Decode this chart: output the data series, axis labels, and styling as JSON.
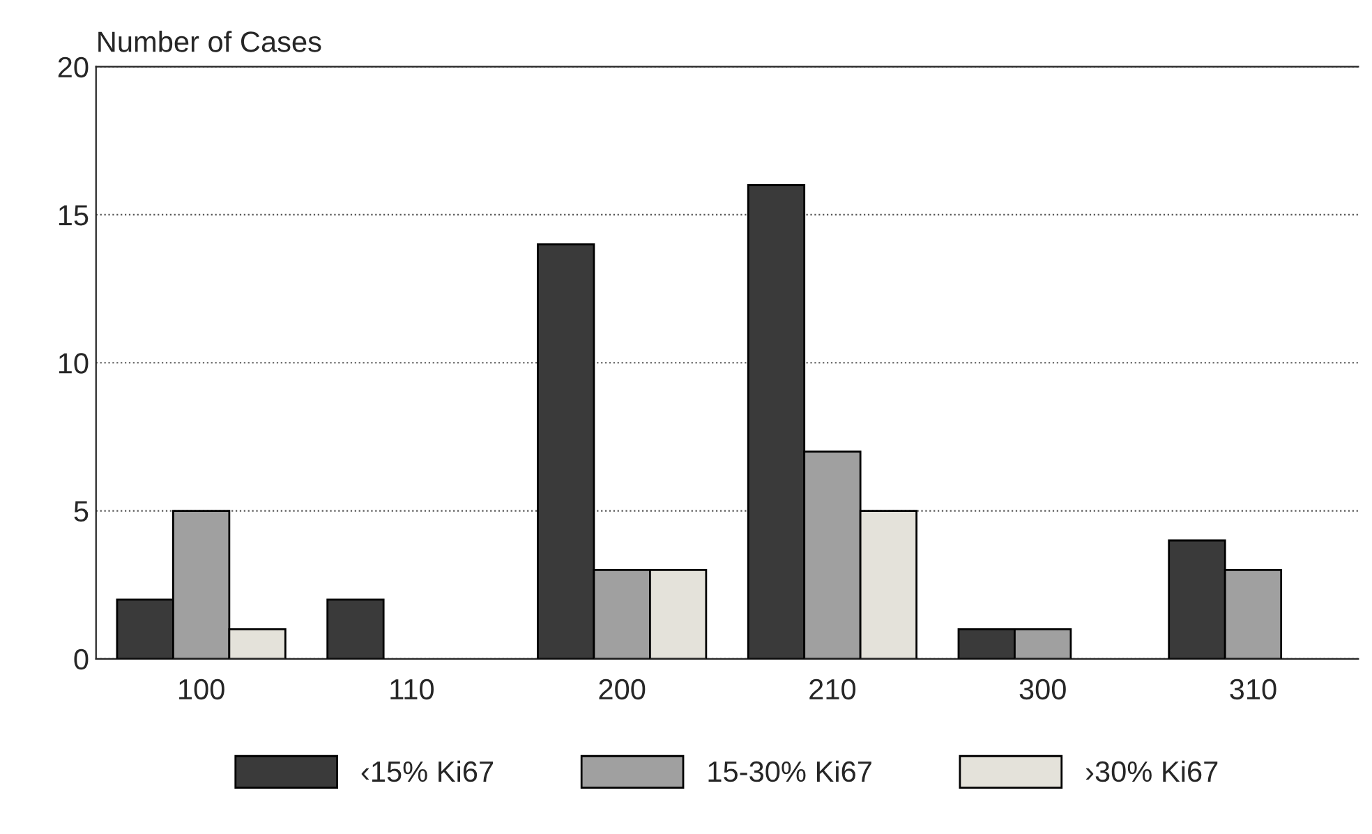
{
  "chart_data": {
    "type": "bar",
    "ylabel": "Number of Cases",
    "categories": [
      "100",
      "110",
      "200",
      "210",
      "300",
      "310"
    ],
    "series": [
      {
        "name": "‹15% Ki67",
        "color": "#3a3a3a",
        "values": [
          2,
          2,
          14,
          16,
          1,
          4
        ]
      },
      {
        "name": "15-30% Ki67",
        "color": "#a0a0a0",
        "values": [
          5,
          0,
          3,
          7,
          1,
          3
        ]
      },
      {
        "name": "›30% Ki67",
        "color": "#e4e2da",
        "values": [
          1,
          0,
          3,
          5,
          0,
          0
        ]
      }
    ],
    "ylim": [
      0,
      20
    ],
    "yticks": [
      0,
      5,
      10,
      15,
      20
    ],
    "grid": "y",
    "legend": "bottom"
  }
}
